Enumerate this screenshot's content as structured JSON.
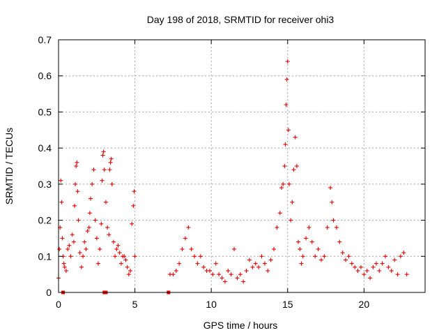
{
  "chart_data": {
    "type": "scatter",
    "title": "Day 198 of 2018, SRMTID for receiver ohi3",
    "xlabel": "GPS time / hours",
    "ylabel": "SRMTID / TECUs",
    "xlim": [
      0,
      24
    ],
    "ylim": [
      0,
      0.7
    ],
    "xticks": [
      0,
      5,
      10,
      15,
      20
    ],
    "xtick_labels": [
      "0",
      "5",
      "10",
      "15",
      "20"
    ],
    "yticks": [
      0,
      0.1,
      0.2,
      0.3,
      0.4,
      0.5,
      0.6,
      0.7
    ],
    "ytick_labels": [
      "0",
      "0.1",
      "0.2",
      "0.3",
      "0.4",
      "0.5",
      "0.6",
      "0.7"
    ],
    "grid": true,
    "marker": "+",
    "color": "#e00000",
    "data_gap_markers_x": [
      0.3,
      3.0,
      3.1,
      7.2
    ],
    "series": [
      {
        "name": "SRMTID",
        "points": [
          [
            0.0,
            0.04
          ],
          [
            0.05,
            0.12
          ],
          [
            0.1,
            0.18
          ],
          [
            0.15,
            0.31
          ],
          [
            0.2,
            0.25
          ],
          [
            0.25,
            0.15
          ],
          [
            0.3,
            0.1
          ],
          [
            0.35,
            0.08
          ],
          [
            0.4,
            0.07
          ],
          [
            0.5,
            0.06
          ],
          [
            0.6,
            0.12
          ],
          [
            0.7,
            0.13
          ],
          [
            0.8,
            0.1
          ],
          [
            0.9,
            0.16
          ],
          [
            1.0,
            0.14
          ],
          [
            1.05,
            0.24
          ],
          [
            1.1,
            0.3
          ],
          [
            1.15,
            0.35
          ],
          [
            1.2,
            0.36
          ],
          [
            1.25,
            0.28
          ],
          [
            1.3,
            0.2
          ],
          [
            1.4,
            0.11
          ],
          [
            1.5,
            0.07
          ],
          [
            1.6,
            0.1
          ],
          [
            1.7,
            0.14
          ],
          [
            1.8,
            0.12
          ],
          [
            1.9,
            0.17
          ],
          [
            2.0,
            0.18
          ],
          [
            2.05,
            0.22
          ],
          [
            2.1,
            0.26
          ],
          [
            2.2,
            0.3
          ],
          [
            2.3,
            0.34
          ],
          [
            2.4,
            0.2
          ],
          [
            2.5,
            0.15
          ],
          [
            2.6,
            0.08
          ],
          [
            2.7,
            0.12
          ],
          [
            2.8,
            0.19
          ],
          [
            2.85,
            0.31
          ],
          [
            2.9,
            0.38
          ],
          [
            2.95,
            0.39
          ],
          [
            3.0,
            0.34
          ],
          [
            3.1,
            0.25
          ],
          [
            3.2,
            0.18
          ],
          [
            3.3,
            0.16
          ],
          [
            3.35,
            0.34
          ],
          [
            3.4,
            0.36
          ],
          [
            3.45,
            0.37
          ],
          [
            3.5,
            0.3
          ],
          [
            3.6,
            0.14
          ],
          [
            3.7,
            0.1
          ],
          [
            3.8,
            0.12
          ],
          [
            3.9,
            0.13
          ],
          [
            4.0,
            0.11
          ],
          [
            4.1,
            0.08
          ],
          [
            4.2,
            0.1
          ],
          [
            4.3,
            0.1
          ],
          [
            4.4,
            0.09
          ],
          [
            4.5,
            0.07
          ],
          [
            4.6,
            0.05
          ],
          [
            4.7,
            0.06
          ],
          [
            4.8,
            0.19
          ],
          [
            4.9,
            0.24
          ],
          [
            4.95,
            0.28
          ],
          [
            5.0,
            0.1
          ],
          [
            7.3,
            0.05
          ],
          [
            7.5,
            0.05
          ],
          [
            7.7,
            0.06
          ],
          [
            7.9,
            0.08
          ],
          [
            8.1,
            0.12
          ],
          [
            8.3,
            0.15
          ],
          [
            8.5,
            0.18
          ],
          [
            8.7,
            0.12
          ],
          [
            8.9,
            0.1
          ],
          [
            9.1,
            0.08
          ],
          [
            9.3,
            0.1
          ],
          [
            9.5,
            0.07
          ],
          [
            9.7,
            0.06
          ],
          [
            9.9,
            0.06
          ],
          [
            10.1,
            0.05
          ],
          [
            10.3,
            0.08
          ],
          [
            10.5,
            0.05
          ],
          [
            10.7,
            0.04
          ],
          [
            10.9,
            0.03
          ],
          [
            11.1,
            0.06
          ],
          [
            11.3,
            0.05
          ],
          [
            11.5,
            0.12
          ],
          [
            11.7,
            0.04
          ],
          [
            11.9,
            0.05
          ],
          [
            12.1,
            0.03
          ],
          [
            12.3,
            0.06
          ],
          [
            12.5,
            0.09
          ],
          [
            12.7,
            0.07
          ],
          [
            12.9,
            0.08
          ],
          [
            13.1,
            0.07
          ],
          [
            13.3,
            0.1
          ],
          [
            13.5,
            0.08
          ],
          [
            13.7,
            0.06
          ],
          [
            13.9,
            0.09
          ],
          [
            14.1,
            0.12
          ],
          [
            14.3,
            0.18
          ],
          [
            14.5,
            0.22
          ],
          [
            14.6,
            0.29
          ],
          [
            14.7,
            0.3
          ],
          [
            14.8,
            0.35
          ],
          [
            14.85,
            0.41
          ],
          [
            14.9,
            0.52
          ],
          [
            14.95,
            0.59
          ],
          [
            15.0,
            0.64
          ],
          [
            15.05,
            0.45
          ],
          [
            15.1,
            0.3
          ],
          [
            15.2,
            0.2
          ],
          [
            15.3,
            0.25
          ],
          [
            15.4,
            0.34
          ],
          [
            15.5,
            0.43
          ],
          [
            15.6,
            0.35
          ],
          [
            15.7,
            0.14
          ],
          [
            15.8,
            0.12
          ],
          [
            15.9,
            0.08
          ],
          [
            16.0,
            0.1
          ],
          [
            16.2,
            0.15
          ],
          [
            16.4,
            0.18
          ],
          [
            16.6,
            0.14
          ],
          [
            16.8,
            0.1
          ],
          [
            17.0,
            0.12
          ],
          [
            17.2,
            0.09
          ],
          [
            17.4,
            0.1
          ],
          [
            17.6,
            0.18
          ],
          [
            17.8,
            0.29
          ],
          [
            17.9,
            0.25
          ],
          [
            18.0,
            0.2
          ],
          [
            18.2,
            0.18
          ],
          [
            18.4,
            0.14
          ],
          [
            18.6,
            0.11
          ],
          [
            18.8,
            0.09
          ],
          [
            19.0,
            0.1
          ],
          [
            19.2,
            0.08
          ],
          [
            19.4,
            0.07
          ],
          [
            19.6,
            0.06
          ],
          [
            19.8,
            0.07
          ],
          [
            20.0,
            0.05
          ],
          [
            20.2,
            0.06
          ],
          [
            20.4,
            0.04
          ],
          [
            20.6,
            0.07
          ],
          [
            20.8,
            0.08
          ],
          [
            21.0,
            0.06
          ],
          [
            21.2,
            0.08
          ],
          [
            21.4,
            0.1
          ],
          [
            21.6,
            0.07
          ],
          [
            21.8,
            0.06
          ],
          [
            22.0,
            0.09
          ],
          [
            22.2,
            0.05
          ],
          [
            22.4,
            0.1
          ],
          [
            22.6,
            0.11
          ],
          [
            22.8,
            0.05
          ]
        ]
      }
    ]
  }
}
